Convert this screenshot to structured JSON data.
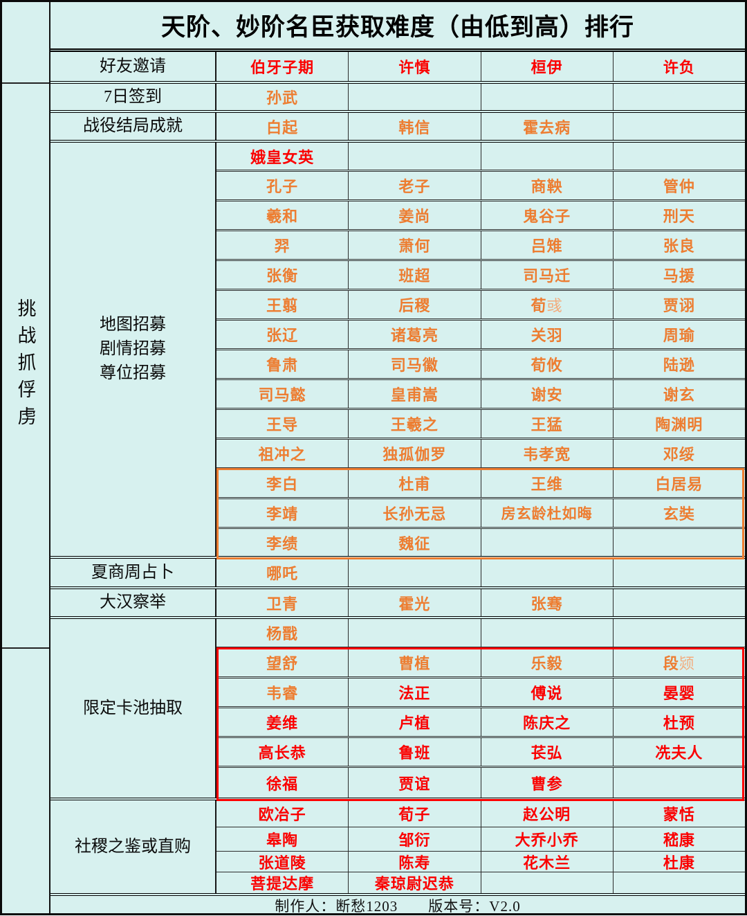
{
  "title": "天阶、妙阶名臣获取难度（由低到高）排行",
  "sidebar": {
    "vertical_label": "挑战抓俘虏"
  },
  "footer": {
    "text": "制作人：断愁1203　　版本号：V2.0"
  },
  "colors": {
    "background": "#d7f1ef",
    "orange_name": "#ED7D31",
    "orange_name_light": "#F3AB7C",
    "red_name": "#FB0000",
    "border": "#111111",
    "orange_highlight_box": "#ED7D31",
    "red_highlight_box": "#FF0000"
  },
  "table": {
    "sections": [
      {
        "label": "好友邀请",
        "rows": [
          {
            "cells": [
              "伯牙子期",
              "许慎",
              "桓伊",
              "许负"
            ],
            "colors": [
              "r",
              "r",
              "r",
              "r"
            ]
          }
        ]
      },
      {
        "label": "7日签到",
        "rows": [
          {
            "cells": [
              "孙武",
              "",
              "",
              ""
            ],
            "colors": [
              "o",
              "",
              "",
              ""
            ]
          }
        ]
      },
      {
        "label": "战役结局成就",
        "rows": [
          {
            "cells": [
              "白起",
              "韩信",
              "霍去病",
              ""
            ],
            "colors": [
              "o",
              "o",
              "o",
              ""
            ]
          }
        ]
      },
      {
        "label": "地图招募\n剧情招募\n尊位招募",
        "rows": [
          {
            "cells": [
              "娥皇女英",
              "",
              "",
              ""
            ],
            "colors": [
              "r",
              "",
              "",
              ""
            ]
          },
          {
            "cells": [
              "孔子",
              "老子",
              "商鞅",
              "管仲"
            ],
            "colors": [
              "o",
              "o",
              "o",
              "o"
            ]
          },
          {
            "cells": [
              "羲和",
              "姜尚",
              "鬼谷子",
              "刑天"
            ],
            "colors": [
              "o",
              "o",
              "o",
              "o"
            ]
          },
          {
            "cells": [
              "羿",
              "萧何",
              "吕雉",
              "张良"
            ],
            "colors": [
              "o",
              "o",
              "o",
              "o"
            ]
          },
          {
            "cells": [
              "张衡",
              "班超",
              "司马迁",
              "马援"
            ],
            "colors": [
              "o",
              "o",
              "o",
              "o"
            ]
          },
          {
            "cells": [
              "王翦",
              "后稷",
              "荀彧",
              "贾诩"
            ],
            "colors": [
              "o",
              "o",
              "m",
              "o"
            ]
          },
          {
            "cells": [
              "张辽",
              "诸葛亮",
              "关羽",
              "周瑜"
            ],
            "colors": [
              "o",
              "o",
              "o",
              "o"
            ]
          },
          {
            "cells": [
              "鲁肃",
              "司马徽",
              "荀攸",
              "陆逊"
            ],
            "colors": [
              "o",
              "o",
              "o",
              "o"
            ]
          },
          {
            "cells": [
              "司马懿",
              "皇甫嵩",
              "谢安",
              "谢玄"
            ],
            "colors": [
              "o",
              "o",
              "o",
              "o"
            ]
          },
          {
            "cells": [
              "王导",
              "王羲之",
              "王猛",
              "陶渊明"
            ],
            "colors": [
              "o",
              "o",
              "o",
              "o"
            ]
          },
          {
            "cells": [
              "祖冲之",
              "独孤伽罗",
              "韦孝宽",
              "邓绥"
            ],
            "colors": [
              "o",
              "o",
              "o",
              "o"
            ]
          },
          {
            "cells": [
              "李白",
              "杜甫",
              "王维",
              "白居易"
            ],
            "colors": [
              "o",
              "o",
              "o",
              "o"
            ]
          },
          {
            "cells": [
              "李靖",
              "长孙无忌",
              "房玄龄杜如晦",
              "玄奘"
            ],
            "colors": [
              "o",
              "o",
              "o",
              "o"
            ]
          },
          {
            "cells": [
              "李绩",
              "魏征",
              "",
              ""
            ],
            "colors": [
              "o",
              "o",
              "",
              ""
            ]
          }
        ]
      },
      {
        "label": "夏商周占卜",
        "rows": [
          {
            "cells": [
              "哪吒",
              "",
              "",
              ""
            ],
            "colors": [
              "o",
              "",
              "",
              ""
            ]
          }
        ]
      },
      {
        "label": "大汉察举",
        "rows": [
          {
            "cells": [
              "卫青",
              "霍光",
              "张骞",
              ""
            ],
            "colors": [
              "o",
              "o",
              "o",
              ""
            ]
          }
        ]
      },
      {
        "label": "限定卡池抽取",
        "rows": [
          {
            "cells": [
              "杨戬",
              "",
              "",
              ""
            ],
            "colors": [
              "o",
              "",
              "",
              ""
            ]
          },
          {
            "cells": [
              "望舒",
              "曹植",
              "乐毅",
              "段颎"
            ],
            "colors": [
              "o",
              "o",
              "o",
              "m"
            ]
          },
          {
            "cells": [
              "韦睿",
              "法正",
              "傅说",
              "晏婴"
            ],
            "colors": [
              "o",
              "r",
              "r",
              "r"
            ]
          },
          {
            "cells": [
              "姜维",
              "卢植",
              "陈庆之",
              "杜预"
            ],
            "colors": [
              "r",
              "r",
              "r",
              "r"
            ]
          },
          {
            "cells": [
              "高长恭",
              "鲁班",
              "苌弘",
              "冼夫人"
            ],
            "colors": [
              "r",
              "r",
              "r",
              "r"
            ]
          },
          {
            "cells": [
              "徐福",
              "贾谊",
              "曹参",
              ""
            ],
            "colors": [
              "r",
              "r",
              "r",
              ""
            ]
          }
        ]
      },
      {
        "label": "社稷之鉴或直购",
        "rows": [
          {
            "cells": [
              "欧冶子",
              "荀子",
              "赵公明",
              "蒙恬"
            ],
            "colors": [
              "r",
              "r",
              "r",
              "r"
            ]
          },
          {
            "cells": [
              "皋陶",
              "邹衍",
              "大乔小乔",
              "嵇康"
            ],
            "colors": [
              "r",
              "r",
              "r",
              "r"
            ]
          },
          {
            "cells": [
              "张道陵",
              "陈寿",
              "花木兰",
              "杜康"
            ],
            "colors": [
              "r",
              "r",
              "r",
              "r"
            ]
          },
          {
            "cells": [
              "菩提达摩",
              "秦琼尉迟恭",
              "",
              ""
            ],
            "colors": [
              "r",
              "r",
              "",
              ""
            ]
          }
        ]
      }
    ]
  },
  "highlights": {
    "orange_box_rows": "李白 — 李绩",
    "red_box_rows": "望舒 — 徐福"
  }
}
